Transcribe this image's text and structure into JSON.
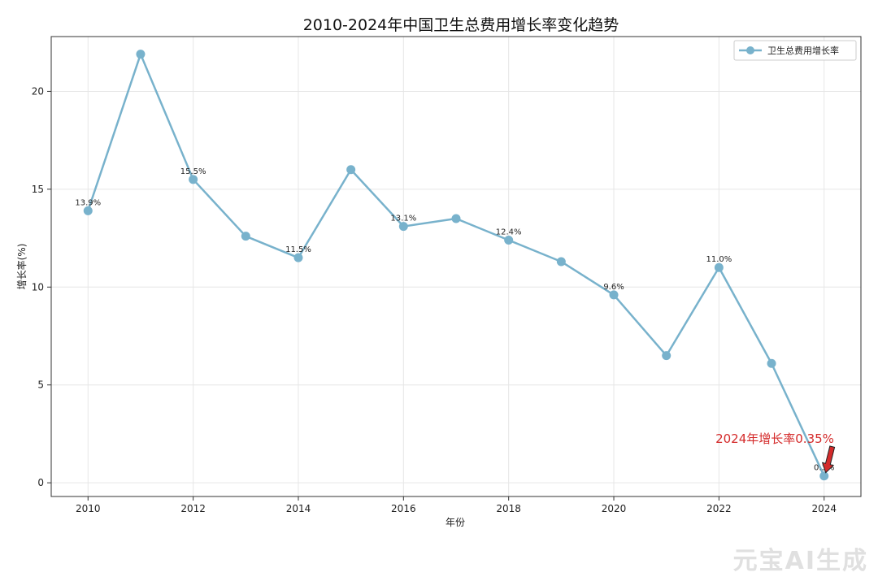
{
  "chart_data": {
    "type": "line",
    "title": "2010-2024年中国卫生总费用增长率变化趋势",
    "xlabel": "年份",
    "ylabel": "增长率(%)",
    "xlim": [
      2009.3,
      2024.7
    ],
    "ylim": [
      -0.7,
      22.8
    ],
    "x_ticks": [
      2010,
      2012,
      2014,
      2016,
      2018,
      2020,
      2022,
      2024
    ],
    "y_ticks": [
      0,
      5,
      10,
      15,
      20
    ],
    "grid": true,
    "legend_position": "top-right",
    "series": [
      {
        "name": "卫生总费用增长率",
        "color": "#78b2cc",
        "x": [
          2010,
          2011,
          2012,
          2013,
          2014,
          2015,
          2016,
          2017,
          2018,
          2019,
          2020,
          2021,
          2022,
          2023,
          2024
        ],
        "values": [
          13.9,
          21.9,
          15.5,
          12.6,
          11.5,
          16.0,
          13.1,
          13.5,
          12.4,
          11.3,
          9.6,
          6.5,
          11.0,
          6.1,
          0.35
        ]
      }
    ],
    "data_labels": [
      {
        "x": 2010,
        "y": 13.9,
        "text": "13.9%"
      },
      {
        "x": 2012,
        "y": 15.5,
        "text": "15.5%"
      },
      {
        "x": 2014,
        "y": 11.5,
        "text": "11.5%"
      },
      {
        "x": 2016,
        "y": 13.1,
        "text": "13.1%"
      },
      {
        "x": 2018,
        "y": 12.4,
        "text": "12.4%"
      },
      {
        "x": 2020,
        "y": 9.6,
        "text": "9.6%"
      },
      {
        "x": 2022,
        "y": 11.0,
        "text": "11.0%"
      },
      {
        "x": 2024,
        "y": 0.35,
        "text": "0.3%"
      }
    ],
    "annotation": {
      "text": "2024年增长率0.35%",
      "x": 2024,
      "y": 0.35,
      "color": "#d42a2a",
      "arrow_color": "#d42a2a"
    }
  },
  "watermark": "元宝AI生成"
}
